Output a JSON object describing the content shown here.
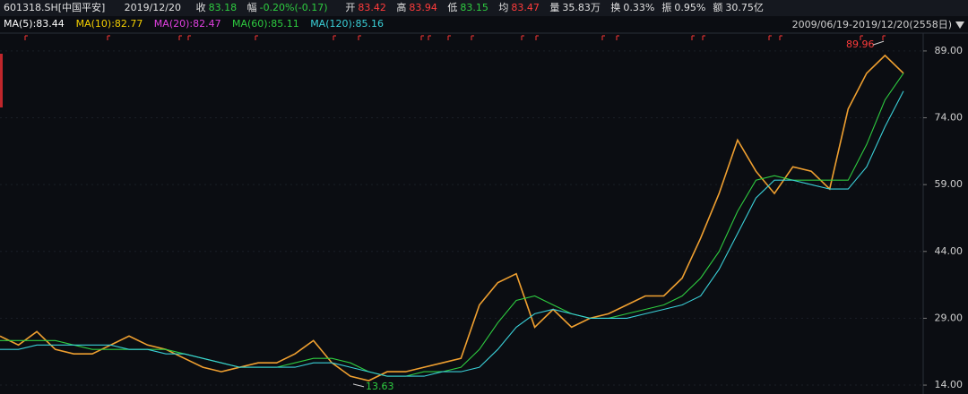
{
  "header": {
    "code": "601318.SH[中国平安]",
    "date": "2019/12/20",
    "fields": [
      {
        "label": "收",
        "value": "83.18",
        "color": "#2ecc40"
      },
      {
        "label": "幅",
        "value": "-0.20%(-0.17)",
        "color": "#2ecc40"
      },
      {
        "label": "开",
        "value": "83.42",
        "color": "#ff3b3b"
      },
      {
        "label": "高",
        "value": "83.94",
        "color": "#ff3b3b"
      },
      {
        "label": "低",
        "value": "83.15",
        "color": "#2ecc40"
      },
      {
        "label": "均",
        "value": "83.47",
        "color": "#ff3b3b"
      },
      {
        "label": "量",
        "value": "35.83万",
        "color": "#e0e0e0"
      },
      {
        "label": "换",
        "value": "0.33%",
        "color": "#e0e0e0"
      },
      {
        "label": "振",
        "value": "0.95%",
        "color": "#e0e0e0"
      },
      {
        "label": "额",
        "value": "30.75亿",
        "color": "#e0e0e0"
      }
    ],
    "range": "2009/06/19-2019/12/20(2558日)"
  },
  "chart_data": {
    "type": "line",
    "legend_items": [
      {
        "label": "MA(5):83.44",
        "color": "#ffffff"
      },
      {
        "label": "MA(10):82.77",
        "color": "#f5d000"
      },
      {
        "label": "MA(20):82.47",
        "color": "#e040e0"
      },
      {
        "label": "MA(60):85.11",
        "color": "#2ecc40"
      },
      {
        "label": "MA(120):85.16",
        "color": "#3ad0d8"
      }
    ],
    "categories": [
      null,
      null,
      null,
      null,
      null,
      null,
      null,
      null,
      null,
      null,
      null,
      null,
      null,
      null,
      null,
      null,
      null,
      null,
      null,
      null,
      null,
      null,
      null,
      null,
      null,
      null,
      null,
      null,
      null,
      null,
      null,
      null,
      null,
      null,
      null,
      null,
      null,
      null,
      null,
      null,
      null,
      null,
      null,
      null,
      null,
      null,
      null,
      null,
      null,
      null
    ],
    "series": [
      {
        "name": "MA(5)",
        "color": "#f0a030",
        "values": [
          25,
          23,
          26,
          22,
          21,
          21,
          23,
          25,
          23,
          22,
          20,
          18,
          17,
          18,
          19,
          19,
          21,
          24,
          19,
          16,
          15,
          17,
          17,
          18,
          19,
          20,
          32,
          37,
          39,
          27,
          31,
          27,
          29,
          30,
          32,
          34,
          34,
          38,
          47,
          57,
          69,
          62,
          57,
          63,
          62,
          58,
          76,
          84,
          88,
          84
        ]
      },
      {
        "name": "MA(60)",
        "color": "#2ecc40",
        "values": [
          24,
          24,
          24,
          24,
          23,
          22,
          22,
          22,
          22,
          22,
          21,
          20,
          19,
          18,
          18,
          18,
          19,
          20,
          20,
          19,
          17,
          16,
          16,
          17,
          17,
          18,
          22,
          28,
          33,
          34,
          32,
          30,
          29,
          29,
          30,
          31,
          32,
          34,
          38,
          44,
          53,
          60,
          61,
          60,
          60,
          60,
          60,
          68,
          78,
          84
        ]
      },
      {
        "name": "MA(120)",
        "color": "#3ad0d8",
        "values": [
          22,
          22,
          23,
          23,
          23,
          23,
          23,
          22,
          22,
          21,
          21,
          20,
          19,
          18,
          18,
          18,
          18,
          19,
          19,
          18,
          17,
          16,
          16,
          16,
          17,
          17,
          18,
          22,
          27,
          30,
          31,
          30,
          29,
          29,
          29,
          30,
          31,
          32,
          34,
          40,
          48,
          56,
          60,
          60,
          59,
          58,
          58,
          63,
          72,
          80
        ]
      }
    ],
    "ylim": [
      12,
      92.8
    ],
    "yticks": [
      {
        "value": 14,
        "label": "14.00"
      },
      {
        "value": 29,
        "label": "29.00"
      },
      {
        "value": 44,
        "label": "44.00"
      },
      {
        "value": 59,
        "label": "59.00"
      },
      {
        "value": 74,
        "label": "74.00"
      },
      {
        "value": 89,
        "label": "89.00"
      }
    ],
    "max_label": {
      "value": 89.96,
      "label": "89.96"
    },
    "min_label": {
      "value": 13.63,
      "label": "13.63"
    }
  }
}
